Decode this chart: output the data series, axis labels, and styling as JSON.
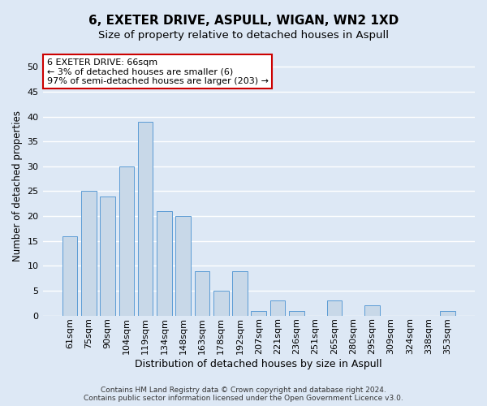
{
  "title1": "6, EXETER DRIVE, ASPULL, WIGAN, WN2 1XD",
  "title2": "Size of property relative to detached houses in Aspull",
  "xlabel": "Distribution of detached houses by size in Aspull",
  "ylabel": "Number of detached properties",
  "categories": [
    "61sqm",
    "75sqm",
    "90sqm",
    "104sqm",
    "119sqm",
    "134sqm",
    "148sqm",
    "163sqm",
    "178sqm",
    "192sqm",
    "207sqm",
    "221sqm",
    "236sqm",
    "251sqm",
    "265sqm",
    "280sqm",
    "295sqm",
    "309sqm",
    "324sqm",
    "338sqm",
    "353sqm"
  ],
  "values": [
    16,
    25,
    24,
    30,
    39,
    21,
    20,
    9,
    5,
    9,
    1,
    3,
    1,
    0,
    3,
    0,
    2,
    0,
    0,
    0,
    1
  ],
  "bar_color": "#c8d8e8",
  "bar_edge_color": "#5b9bd5",
  "annotation_box_text_line1": "6 EXETER DRIVE: 66sqm",
  "annotation_box_text_line2": "← 3% of detached houses are smaller (6)",
  "annotation_box_text_line3": "97% of semi-detached houses are larger (203) →",
  "annotation_box_color": "#ffffff",
  "annotation_box_edge_color": "#cc0000",
  "ylim": [
    0,
    52
  ],
  "yticks": [
    0,
    5,
    10,
    15,
    20,
    25,
    30,
    35,
    40,
    45,
    50
  ],
  "background_color": "#dde8f5",
  "plot_bg_color": "#dde8f5",
  "grid_color": "#ffffff",
  "footer1": "Contains HM Land Registry data © Crown copyright and database right 2024.",
  "footer2": "Contains public sector information licensed under the Open Government Licence v3.0.",
  "title1_fontsize": 11,
  "title2_fontsize": 9.5,
  "ylabel_fontsize": 8.5,
  "xlabel_fontsize": 9,
  "tick_fontsize": 8,
  "annotation_fontsize": 8,
  "footer_fontsize": 6.5
}
